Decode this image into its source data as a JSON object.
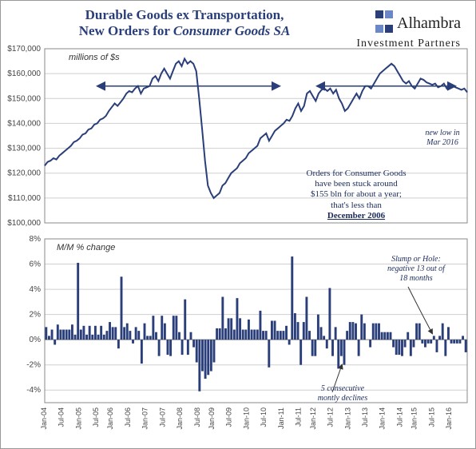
{
  "logo": {
    "line1": "Alhambra",
    "line2": "Investment",
    "line3": "Partners",
    "icon_colors": [
      "#2a3f7a",
      "#6a88c8",
      "#6a88c8",
      "#2a3f7a"
    ]
  },
  "title": {
    "line1": "Durable Goods ex Transportation,",
    "line2_pre": "New Orders for ",
    "line2_em": "Consumer Goods SA",
    "color": "#2a3f7a",
    "fontsize": 17
  },
  "top_chart": {
    "type": "line",
    "subtitle": "millions of $s",
    "subtitle_style": "italic",
    "ylim": [
      100000,
      170000
    ],
    "ytick_step": 10000,
    "ytick_prefix": "$",
    "ytick_format": "comma",
    "xstart_year": 2004,
    "xend_year": 2016.3,
    "line_color": "#2a3f7a",
    "line_width": 2,
    "grid_color": "#cfcfcf",
    "background_color": "#ffffff",
    "series": [
      123000,
      124500,
      125000,
      126000,
      125500,
      127000,
      128000,
      129000,
      130000,
      131000,
      132500,
      133000,
      134000,
      135500,
      136000,
      137500,
      138000,
      139500,
      140000,
      141500,
      142000,
      143000,
      145000,
      146500,
      148000,
      147000,
      148500,
      150000,
      152000,
      153000,
      152500,
      154000,
      155000,
      152000,
      154000,
      154500,
      155000,
      158000,
      159000,
      157000,
      160000,
      162000,
      160000,
      158000,
      161000,
      164000,
      165000,
      163000,
      166000,
      164000,
      165000,
      164000,
      161000,
      150000,
      138000,
      125000,
      115000,
      112000,
      110000,
      111000,
      112000,
      115000,
      116000,
      118000,
      120000,
      121000,
      122000,
      124000,
      125000,
      126000,
      128000,
      129000,
      130000,
      131000,
      134000,
      135000,
      136000,
      133000,
      135000,
      137000,
      138000,
      139000,
      140000,
      141500,
      141000,
      143000,
      146000,
      148000,
      145000,
      147000,
      152000,
      153000,
      151000,
      149000,
      152000,
      153500,
      154000,
      153000,
      154000,
      152000,
      153500,
      150000,
      148000,
      145000,
      146000,
      148000,
      150000,
      152000,
      150000,
      153000,
      155000,
      155000,
      154000,
      156000,
      158000,
      160000,
      161000,
      162000,
      163000,
      164000,
      163000,
      161000,
      159000,
      157000,
      156000,
      157000,
      155000,
      154000,
      156000,
      158000,
      157500,
      156500,
      156000,
      155500,
      156000,
      154500,
      155000,
      156000,
      154000,
      155500,
      155000,
      154500,
      154000,
      153500,
      154000,
      152500
    ],
    "annotations": {
      "main": {
        "text_l1": "Orders for Consumer Goods",
        "text_l2": "have been stuck around",
        "text_l3": "$155 bln for about a year;",
        "text_l4": "that's less than",
        "text_l5": "December 2006",
        "underline_last": true
      },
      "newlow": {
        "text_l1": "new low in",
        "text_l2": "Mar 2016"
      },
      "arrow_color": "#2a3f7a"
    }
  },
  "bottom_chart": {
    "type": "bar",
    "subtitle": "M/M % change",
    "subtitle_style": "italic",
    "ylim": [
      -5,
      8
    ],
    "yticks": [
      -4,
      -2,
      0,
      2,
      4,
      6,
      8
    ],
    "ytick_suffix": "%",
    "xtick_labels": [
      "Jan-04",
      "Jul-04",
      "Jan-05",
      "Jul-05",
      "Jan-06",
      "Jul-06",
      "Jan-07",
      "Jul-07",
      "Jan-08",
      "Jul-08",
      "Jan-09",
      "Jul-09",
      "Jan-10",
      "Jul-10",
      "Jan-11",
      "Jul-11",
      "Jan-12",
      "Jul-12",
      "Jan-13",
      "Jul-13",
      "Jan-14",
      "Jul-14",
      "Jan-15",
      "Jul-15",
      "Jan-16"
    ],
    "bar_color": "#2a3f7a",
    "grid_color": "#cfcfcf",
    "series": [
      1.0,
      0.3,
      0.8,
      -0.4,
      1.2,
      0.8,
      0.8,
      0.8,
      0.8,
      1.2,
      0.4,
      6.1,
      0.8,
      1.1,
      0.4,
      1.1,
      0.4,
      1.1,
      0.4,
      1.1,
      0.4,
      0.7,
      1.4,
      1.0,
      1.0,
      -0.7,
      5.0,
      1.0,
      1.3,
      0.7,
      -0.3,
      1.0,
      0.7,
      -1.9,
      1.3,
      0.3,
      0.3,
      1.9,
      0.6,
      -1.3,
      1.9,
      1.3,
      -1.2,
      -1.3,
      1.9,
      1.9,
      0.6,
      -1.2,
      3.2,
      -1.2,
      0.6,
      -0.6,
      -1.8,
      -4.1,
      -2.5,
      -3.1,
      -2.8,
      -2.5,
      -1.8,
      0.9,
      0.9,
      3.4,
      0.9,
      1.7,
      1.7,
      0.8,
      3.3,
      1.7,
      0.8,
      0.8,
      1.6,
      0.8,
      0.8,
      0.8,
      2.3,
      0.7,
      0.7,
      -2.2,
      1.5,
      1.5,
      0.7,
      0.7,
      0.7,
      1.1,
      -0.4,
      6.6,
      2.1,
      1.4,
      -2.0,
      1.4,
      3.4,
      0.7,
      -1.3,
      -1.3,
      2.0,
      1.0,
      0.3,
      -0.7,
      4.1,
      -1.3,
      1.0,
      -2.3,
      -1.3,
      -2.0,
      0.7,
      1.4,
      1.4,
      1.3,
      -1.3,
      2.0,
      1.3,
      0.0,
      -0.6,
      1.3,
      1.3,
      1.3,
      0.6,
      0.6,
      0.6,
      0.6,
      -0.6,
      -1.2,
      -1.2,
      -1.3,
      -0.6,
      0.6,
      -1.3,
      -0.6,
      1.3,
      1.3,
      -0.3,
      -0.6,
      -0.3,
      -0.3,
      0.3,
      -1.0,
      0.3,
      1.3,
      -1.3,
      1.0,
      -0.3,
      -0.3,
      -0.3,
      -0.3,
      0.3,
      -1.0
    ],
    "annotations": {
      "slump": {
        "text_l1": "Slump or Hole:",
        "text_l2": "negative 13 out of",
        "text_l3": "18 months"
      },
      "declines": {
        "text_l1": "5 consecutive",
        "text_l2": "montly declines"
      }
    }
  }
}
